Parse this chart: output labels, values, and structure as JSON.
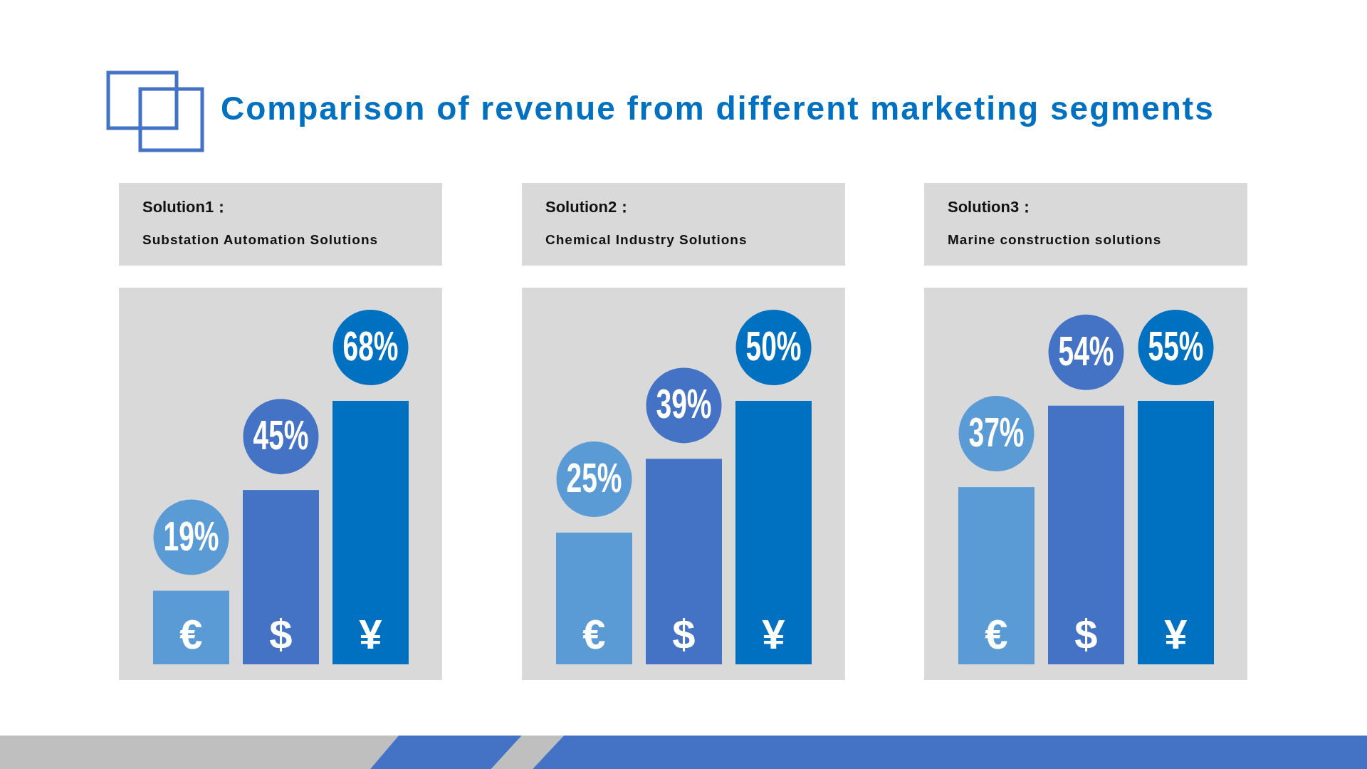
{
  "chart_data": [
    {
      "type": "bar",
      "title": "Solution1：",
      "subtitle": "Substation Automation Solutions",
      "annotations": [
        "Comparison of revenue from different marketing segments"
      ],
      "categories": [
        "€",
        "$",
        "¥"
      ],
      "values": [
        19,
        45,
        68
      ],
      "value_labels": [
        "19%",
        "45%",
        "68%"
      ],
      "colors": [
        "#5b9bd5",
        "#4472c4",
        "#0070c0"
      ]
    },
    {
      "type": "bar",
      "title": "Solution2：",
      "subtitle": "Chemical Industry Solutions",
      "categories": [
        "€",
        "$",
        "¥"
      ],
      "values": [
        25,
        39,
        50
      ],
      "value_labels": [
        "25%",
        "39%",
        "50%"
      ],
      "colors": [
        "#5b9bd5",
        "#4472c4",
        "#0070c0"
      ]
    },
    {
      "type": "bar",
      "title": "Solution3：",
      "subtitle": "Marine construction solutions",
      "categories": [
        "€",
        "$",
        "¥"
      ],
      "values": [
        37,
        54,
        55
      ],
      "value_labels": [
        "37%",
        "54%",
        "55%"
      ],
      "colors": [
        "#5b9bd5",
        "#4472c4",
        "#0070c0"
      ]
    }
  ]
}
